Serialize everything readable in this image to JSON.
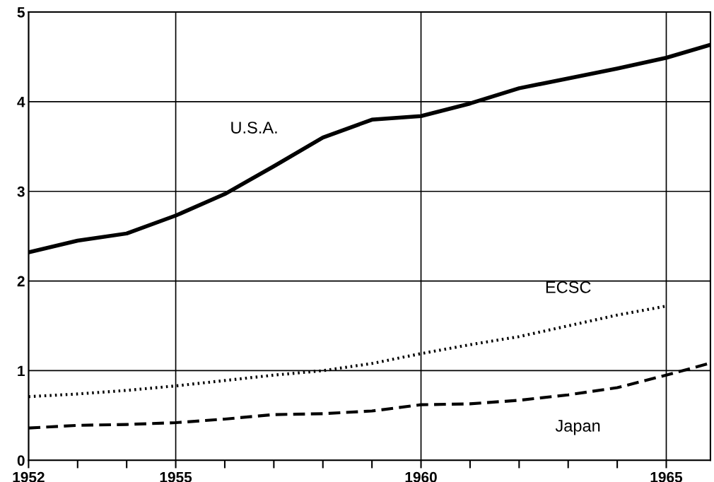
{
  "chart_data": {
    "type": "line",
    "x": [
      1952,
      1953,
      1954,
      1955,
      1956,
      1957,
      1958,
      1959,
      1960,
      1961,
      1962,
      1963,
      1964,
      1965,
      1965.87
    ],
    "series": [
      {
        "name": "U.S.A.",
        "color": "#000000",
        "line_style": "solid",
        "values": [
          2.32,
          2.45,
          2.53,
          2.73,
          2.97,
          3.28,
          3.6,
          3.8,
          3.84,
          3.98,
          4.15,
          4.26,
          4.37,
          4.49,
          4.63
        ]
      },
      {
        "name": "ECSC",
        "color": "#000000",
        "line_style": "dotted",
        "values": [
          0.71,
          0.74,
          0.78,
          0.83,
          0.89,
          0.95,
          1.0,
          1.08,
          1.19,
          1.29,
          1.38,
          1.5,
          1.62,
          1.72,
          null
        ]
      },
      {
        "name": "Japan",
        "color": "#000000",
        "line_style": "dashed",
        "values": [
          0.36,
          0.39,
          0.4,
          0.42,
          0.46,
          0.51,
          0.52,
          0.55,
          0.62,
          0.63,
          0.67,
          0.73,
          0.81,
          0.95,
          1.08
        ]
      }
    ],
    "xlim": [
      1952,
      1965.9
    ],
    "ylim": [
      0,
      5
    ],
    "xticks": [
      1952,
      {
        "value": 1953,
        "label": null
      },
      {
        "value": 1954,
        "label": null
      },
      1955,
      {
        "value": 1956,
        "label": null
      },
      {
        "value": 1957,
        "label": null
      },
      {
        "value": 1958,
        "label": null
      },
      {
        "value": 1959,
        "label": null
      },
      1960,
      {
        "value": 1961,
        "label": null
      },
      {
        "value": 1962,
        "label": null
      },
      {
        "value": 1963,
        "label": null
      },
      {
        "value": 1964,
        "label": null
      },
      1965
    ],
    "yticks": [
      0,
      1,
      2,
      3,
      4,
      5
    ],
    "grid": true,
    "legend": false
  }
}
